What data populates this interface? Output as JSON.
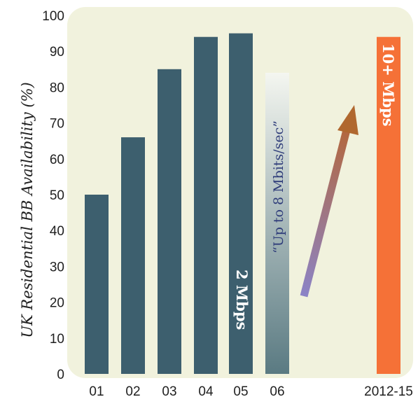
{
  "chart_data": {
    "type": "bar",
    "ylabel": "UK Residential BB Availability (%)",
    "ylim": [
      0,
      100
    ],
    "yticks": [
      "0",
      "10",
      "20",
      "30",
      "40",
      "50",
      "60",
      "70",
      "80",
      "90",
      "100"
    ],
    "categories": [
      "01",
      "02",
      "03",
      "04",
      "05",
      "06",
      "2012-15"
    ],
    "values": [
      50,
      66,
      85,
      94,
      95,
      84,
      94
    ],
    "bar_labels": {
      "05": "2 Mbps",
      "06": "“Up to 8 Mbits/sec”",
      "2012-15": "10+ Mbps"
    },
    "colors": {
      "plot_background": "#f1f2dd",
      "bar": "#3d5f6e",
      "bar_06_top": "#f4f6f0",
      "bar_06_bottom": "#5a7a82",
      "bar_2012": "#f57137",
      "arrow_start": "#8b84c8",
      "arrow_end": "#b8642c",
      "annotation_text": "#2f3d7a"
    },
    "grid": false,
    "legend": "none"
  }
}
